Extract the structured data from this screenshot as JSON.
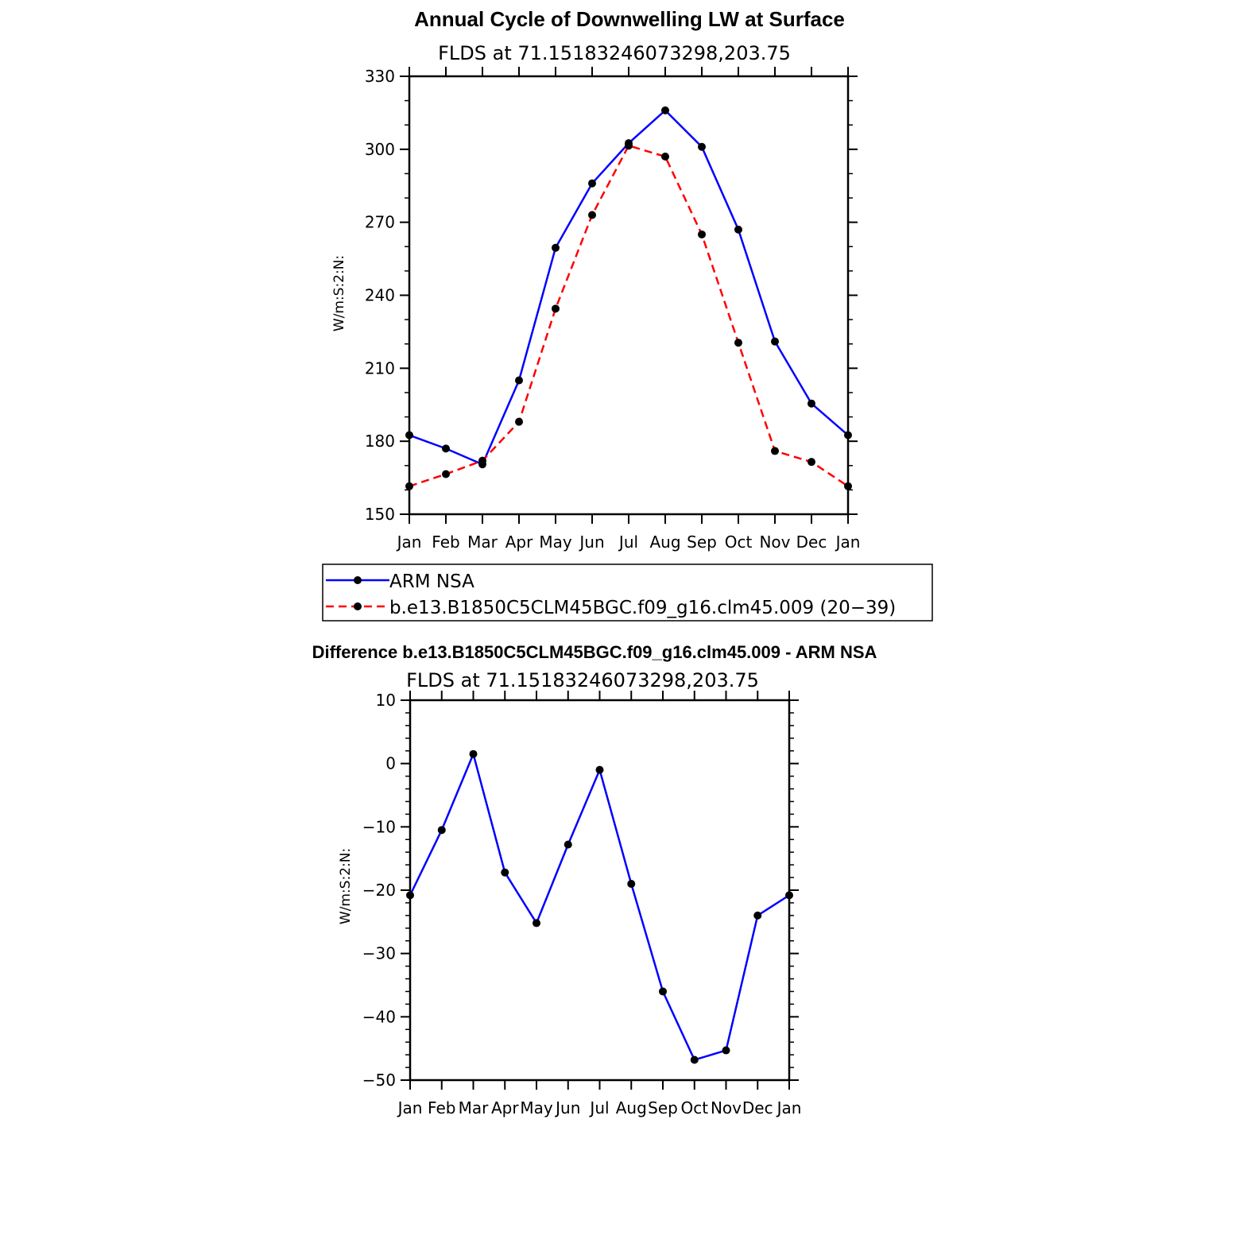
{
  "colors": {
    "obs": "#0000ff",
    "model": "#ff0000",
    "marker": "#000000",
    "axis": "#000000"
  },
  "chart_data": [
    {
      "type": "line",
      "title": "Annual Cycle of Downwelling LW at Surface",
      "subtitle": "FLDS at 71.15183246073298,203.75",
      "ylabel": "W/m:S:2:N:",
      "ylim": [
        150,
        330
      ],
      "yticks": [
        "330",
        "300",
        "270",
        "240",
        "210",
        "180",
        "150"
      ],
      "ytick_values": [
        330,
        300,
        270,
        240,
        210,
        180,
        150
      ],
      "categories": [
        "Jan",
        "Feb",
        "Mar",
        "Apr",
        "May",
        "Jun",
        "Jul",
        "Aug",
        "Sep",
        "Oct",
        "Nov",
        "Dec",
        "Jan"
      ],
      "series": [
        {
          "name": "ARM NSA",
          "style": "solid",
          "values": [
            182.5,
            177.0,
            170.5,
            205.0,
            259.5,
            286.0,
            302.5,
            316.0,
            301.0,
            267.0,
            221.0,
            195.5,
            182.5
          ]
        },
        {
          "name": "b.e13.B1850C5CLM45BGC.f09_g16.clm45.009 (20−39)",
          "style": "dashed",
          "values": [
            161.5,
            166.5,
            172.0,
            188.0,
            234.5,
            273.0,
            301.5,
            297.0,
            265.0,
            220.5,
            176.0,
            171.5,
            161.5
          ]
        }
      ],
      "legend": "below"
    },
    {
      "type": "line",
      "title": "Difference b.e13.B1850C5CLM45BGC.f09_g16.clm45.009 - ARM NSA",
      "subtitle": "FLDS at 71.15183246073298,203.75",
      "ylabel": "W/m:S:2:N:",
      "ylim": [
        -50,
        10
      ],
      "yticks": [
        "10",
        "0",
        "−10",
        "−20",
        "−30",
        "−40",
        "−50"
      ],
      "ytick_values": [
        10,
        0,
        -10,
        -20,
        -30,
        -40,
        -50
      ],
      "categories": [
        "Jan",
        "Feb",
        "Mar",
        "Apr",
        "May",
        "Jun",
        "Jul",
        "Aug",
        "Sep",
        "Oct",
        "Nov",
        "Dec",
        "Jan"
      ],
      "series": [
        {
          "style": "solid",
          "values": [
            -20.8,
            -10.5,
            1.5,
            -17.2,
            -25.2,
            -12.8,
            -1.0,
            -19.0,
            -36.0,
            -46.8,
            -45.3,
            -24.0,
            -20.8
          ]
        }
      ]
    }
  ]
}
